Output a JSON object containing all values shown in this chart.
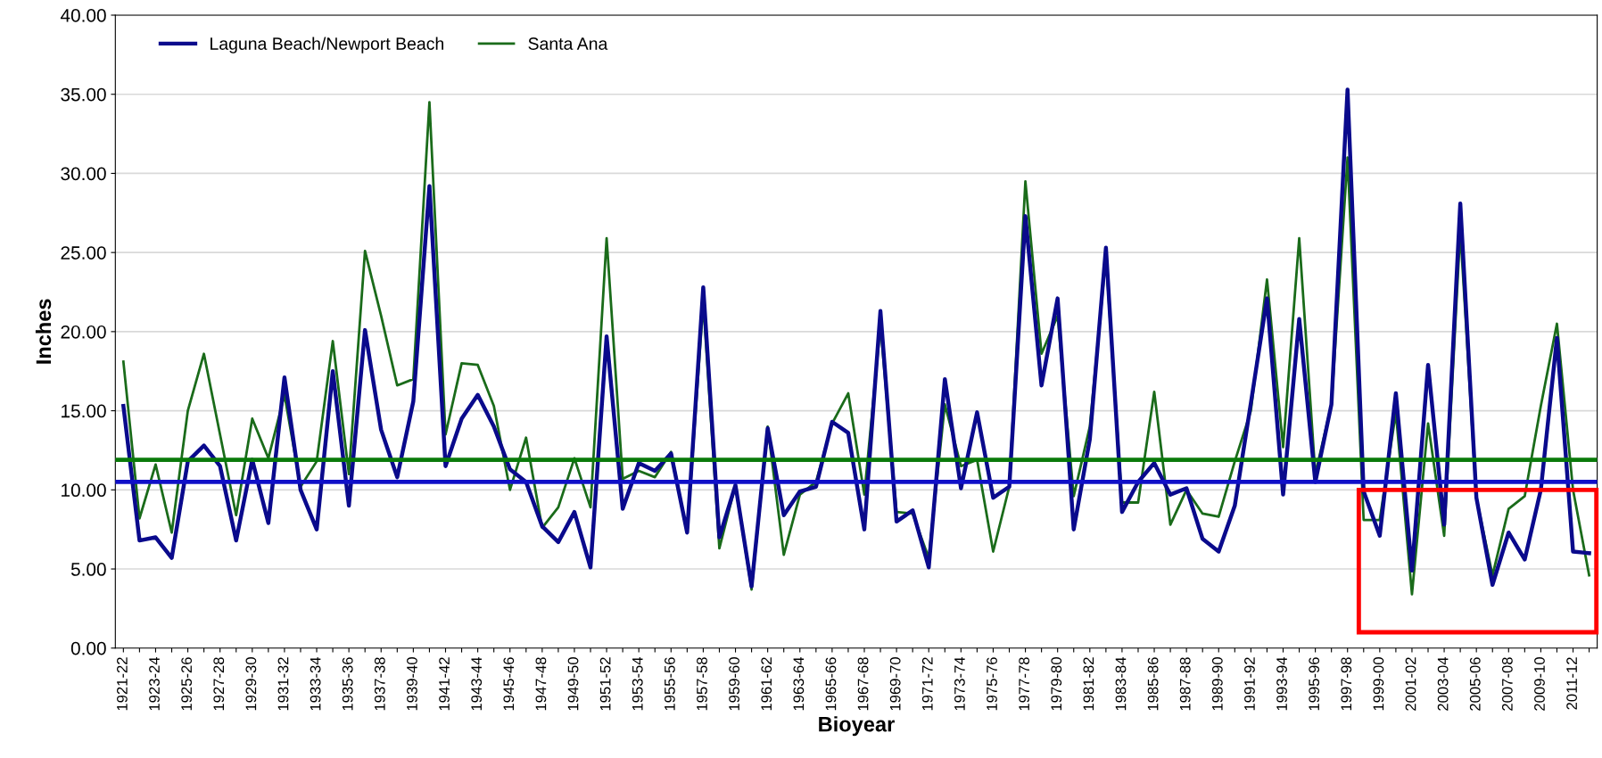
{
  "chart_data": {
    "type": "line",
    "xlabel": "Bioyear",
    "ylabel": "Inches",
    "categories": [
      "1921-22",
      null,
      "1923-24",
      null,
      "1925-26",
      null,
      "1927-28",
      null,
      "1929-30",
      null,
      "1931-32",
      null,
      "1933-34",
      null,
      "1935-36",
      null,
      "1937-38",
      null,
      "1939-40",
      null,
      "1941-42",
      null,
      "1943-44",
      null,
      "1945-46",
      null,
      "1947-48",
      null,
      "1949-50",
      null,
      "1951-52",
      null,
      "1953-54",
      null,
      "1955-56",
      null,
      "1957-58",
      null,
      "1959-60",
      null,
      "1961-62",
      null,
      "1963-64",
      null,
      "1965-66",
      null,
      "1967-68",
      null,
      "1969-70",
      null,
      "1971-72",
      null,
      "1973-74",
      null,
      "1975-76",
      null,
      "1977-78",
      null,
      "1979-80",
      null,
      "1981-82",
      null,
      "1983-84",
      null,
      "1985-86",
      null,
      "1987-88",
      null,
      "1989-90",
      null,
      "1991-92",
      null,
      "1993-94",
      null,
      "1995-96",
      null,
      "1997-98",
      null,
      "1999-00",
      null,
      "2001-02",
      null,
      "2003-04",
      null,
      "2005-06",
      null,
      "2007-08",
      null,
      "2009-10",
      null,
      "2011-12",
      null
    ],
    "series": [
      {
        "name": "Laguna Beach/Newport Beach",
        "color": "#0a0a8c",
        "values": [
          15.3,
          6.8,
          7.0,
          5.7,
          11.8,
          12.8,
          11.5,
          6.8,
          11.9,
          7.9,
          17.1,
          10.0,
          7.5,
          17.5,
          9.0,
          20.1,
          13.8,
          10.8,
          15.6,
          29.2,
          11.5,
          14.5,
          16.0,
          14.0,
          11.3,
          10.5,
          7.7,
          6.7,
          8.6,
          5.1,
          19.7,
          8.8,
          11.7,
          11.2,
          12.3,
          7.3,
          22.8,
          7.0,
          10.3,
          3.9,
          13.9,
          8.4,
          9.9,
          10.2,
          14.3,
          13.6,
          7.5,
          21.3,
          8.0,
          8.7,
          5.1,
          17.0,
          10.1,
          14.9,
          9.5,
          10.2,
          27.3,
          16.6,
          22.1,
          7.5,
          13.2,
          25.3,
          8.6,
          10.5,
          11.7,
          9.7,
          10.1,
          6.9,
          6.1,
          9.0,
          15.5,
          22.1,
          9.7,
          20.8,
          10.5,
          15.4,
          35.3,
          9.9,
          7.1,
          16.1,
          4.9,
          17.9,
          7.8,
          28.1,
          9.5,
          4.0,
          7.3,
          5.6,
          10.0,
          19.6,
          6.1,
          6.0
        ]
      },
      {
        "name": "Santa Ana",
        "color": "#1a6b1a",
        "values": [
          18.1,
          8.2,
          11.6,
          7.3,
          15.0,
          18.6,
          13.5,
          8.4,
          14.5,
          12.0,
          16.0,
          10.2,
          11.8,
          19.4,
          11.0,
          25.1,
          21.0,
          16.6,
          17.0,
          34.5,
          13.5,
          18.0,
          17.9,
          15.3,
          10.0,
          13.3,
          7.6,
          8.9,
          12.0,
          8.9,
          25.9,
          10.7,
          11.2,
          10.8,
          12.4,
          7.3,
          21.8,
          6.3,
          10.3,
          3.7,
          14.0,
          5.9,
          9.7,
          10.5,
          14.2,
          16.1,
          9.7,
          20.4,
          8.6,
          8.5,
          5.7,
          15.4,
          11.5,
          11.9,
          6.1,
          10.2,
          29.5,
          18.6,
          21.0,
          9.6,
          14.0,
          24.7,
          9.2,
          9.2,
          16.2,
          7.8,
          10.0,
          8.5,
          8.3,
          11.8,
          15.0,
          23.3,
          12.7,
          25.9,
          11.0,
          15.4,
          31.0,
          8.1,
          8.1,
          14.9,
          3.4,
          14.2,
          7.1,
          26.4,
          9.5,
          4.6,
          8.8,
          9.6,
          15.3,
          20.5,
          10.0,
          4.6
        ]
      }
    ],
    "ref_lines": [
      {
        "axis": "y",
        "value": 11.9,
        "color": "#0a7a0a"
      },
      {
        "axis": "y",
        "value": 10.5,
        "color": "#1010c8"
      }
    ],
    "ylim": [
      0,
      40
    ],
    "yticks": [
      {
        "value": 0,
        "label": "0.00"
      },
      {
        "value": 5,
        "label": "5.00"
      },
      {
        "value": 10,
        "label": "10.00"
      },
      {
        "value": 15,
        "label": "15.00"
      },
      {
        "value": 20,
        "label": "20.00"
      },
      {
        "value": 25,
        "label": "25.00"
      },
      {
        "value": 30,
        "label": "30.00"
      },
      {
        "value": 35,
        "label": "35.00"
      },
      {
        "value": 40,
        "label": "40.00"
      }
    ],
    "grid": "y",
    "legend": "top left",
    "marker": "none",
    "line_style": "solid"
  }
}
